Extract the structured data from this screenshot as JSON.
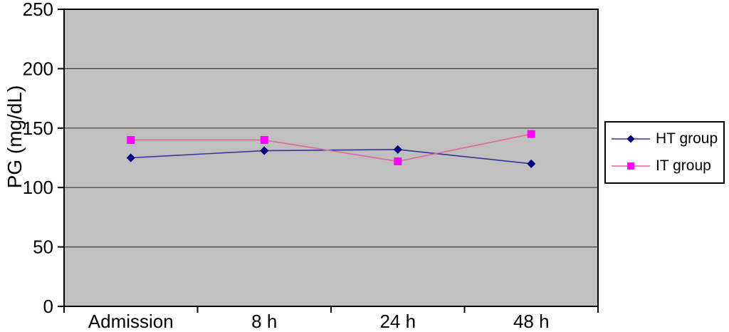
{
  "chart_data": {
    "type": "line",
    "title": "",
    "xlabel": "",
    "ylabel": "PG (mg/dL)",
    "categories": [
      "Admission",
      "8 h",
      "24 h",
      "48 h"
    ],
    "series": [
      {
        "name": "HT group",
        "marker": "diamond",
        "marker_color": "#000080",
        "line_color": "#333399",
        "values": [
          125,
          131,
          132,
          120
        ]
      },
      {
        "name": "IT group",
        "marker": "square",
        "marker_color": "#ff00ff",
        "line_color": "#e2679f",
        "values": [
          140,
          140,
          122,
          145
        ]
      }
    ],
    "ylim": [
      0,
      250
    ],
    "yticks": [
      0,
      50,
      100,
      150,
      200,
      250
    ],
    "grid": "horizontal",
    "legend_position": "right",
    "plot_bg_color": "#c0c0c0",
    "axis_color": "#000000",
    "gridline_color": "#3c3c3c"
  }
}
